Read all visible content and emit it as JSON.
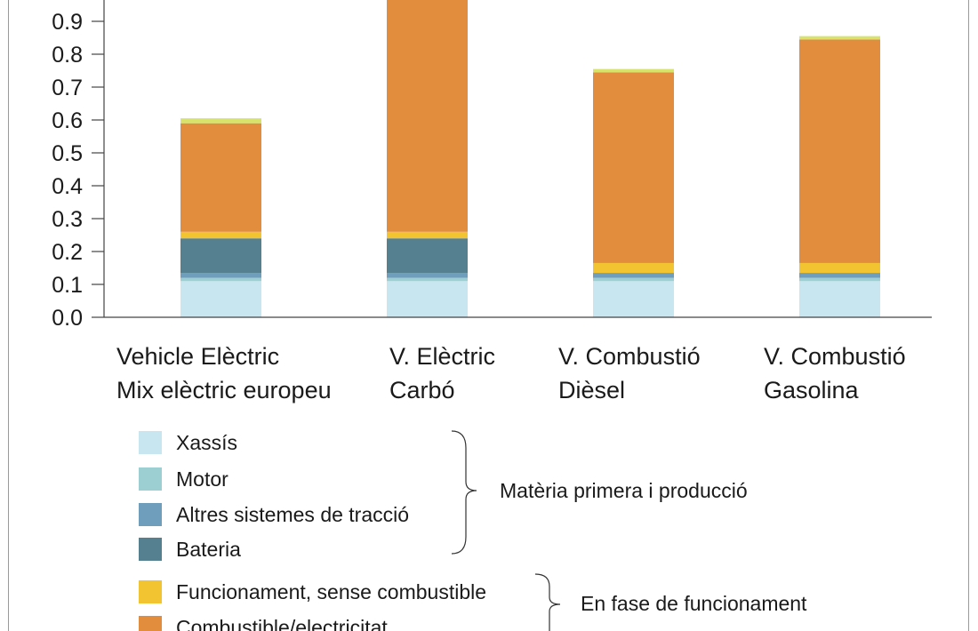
{
  "chart_data": {
    "type": "bar",
    "stacked": true,
    "title": "",
    "xlabel": "",
    "ylabel": "",
    "ylim": [
      0,
      0.98
    ],
    "yticks": [
      "0.0",
      "0.1",
      "0.2",
      "0.3",
      "0.4",
      "0.5",
      "0.6",
      "0.7",
      "0.8",
      "0.9"
    ],
    "categories": [
      [
        "Vehicle Elèctric",
        "Mix elèctric europeu"
      ],
      [
        "V. Elèctric",
        "Carbó"
      ],
      [
        "V. Combustió",
        "Dièsel"
      ],
      [
        "V. Combustió",
        "Gasolina"
      ]
    ],
    "series": [
      {
        "name": "Xassís",
        "color": "#c8e6ef",
        "values": [
          0.11,
          0.11,
          0.11,
          0.11
        ]
      },
      {
        "name": "Motor",
        "color": "#9ccfd1",
        "values": [
          0.01,
          0.01,
          0.01,
          0.01
        ]
      },
      {
        "name": "Altres sistemes de tracció",
        "color": "#6e9ebb",
        "values": [
          0.015,
          0.015,
          0.015,
          0.015
        ]
      },
      {
        "name": "Bateria",
        "color": "#55808f",
        "values": [
          0.105,
          0.105,
          0,
          0
        ]
      },
      {
        "name": "Funcionament, sense combustible",
        "color": "#f3c431",
        "values": [
          0.02,
          0.02,
          0.03,
          0.03
        ]
      },
      {
        "name": "Combustible/electricitat",
        "color": "#e28d3d",
        "values": [
          0.33,
          0.73,
          0.58,
          0.68
        ]
      },
      {
        "name": "",
        "color": "#d7e36a",
        "values": [
          0.015,
          0.015,
          0.01,
          0.01
        ]
      }
    ],
    "groups": [
      {
        "label": "Matèria primera i producció",
        "members": [
          0,
          1,
          2,
          3
        ]
      },
      {
        "label": "En fase de funcionament",
        "members": [
          4,
          5
        ]
      }
    ],
    "legend_position": "bottom-left",
    "grid": false
  }
}
